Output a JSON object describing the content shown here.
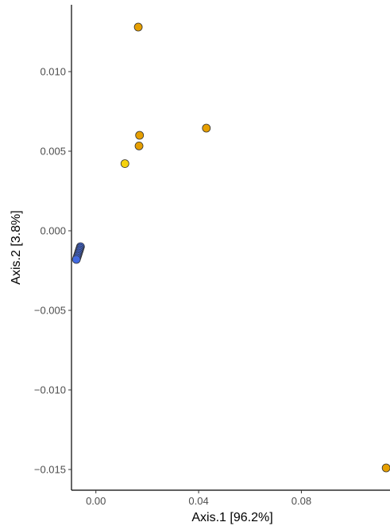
{
  "chart_data": {
    "type": "scatter",
    "xlabel": "Axis.1   [96.2%]",
    "ylabel": "Axis.2   [3.8%]",
    "xlim": [
      -0.0095,
      0.1145
    ],
    "ylim": [
      -0.0163,
      0.0142
    ],
    "x_ticks": [
      {
        "value": 0.0,
        "label": "0.00"
      },
      {
        "value": 0.04,
        "label": "0.04"
      },
      {
        "value": 0.08,
        "label": "0.08"
      }
    ],
    "y_ticks": [
      {
        "value": 0.01,
        "label": "0.010"
      },
      {
        "value": 0.005,
        "label": "0.005"
      },
      {
        "value": 0.0,
        "label": "0.000"
      },
      {
        "value": -0.005,
        "label": "−0.005"
      },
      {
        "value": -0.01,
        "label": "−0.010"
      },
      {
        "value": -0.015,
        "label": "−0.015"
      }
    ],
    "grid": false,
    "legend": "none",
    "series": [
      {
        "color": "#E69F00",
        "points": [
          {
            "x": 0.0165,
            "y": 0.0128
          },
          {
            "x": 0.043,
            "y": 0.00645
          },
          {
            "x": 0.017,
            "y": 0.006
          },
          {
            "x": 0.0168,
            "y": 0.00533
          },
          {
            "x": 0.113,
            "y": -0.0149
          }
        ]
      },
      {
        "color": "#F5D20E",
        "points": [
          {
            "x": 0.0113,
            "y": 0.00422
          }
        ]
      },
      {
        "color": "#4169E1",
        "points": [
          {
            "x": -0.006,
            "y": -0.001
          },
          {
            "x": -0.0062,
            "y": -0.0011
          },
          {
            "x": -0.0064,
            "y": -0.0012
          },
          {
            "x": -0.0066,
            "y": -0.0013
          },
          {
            "x": -0.0068,
            "y": -0.0014
          },
          {
            "x": -0.007,
            "y": -0.0015
          },
          {
            "x": -0.0072,
            "y": -0.0016
          },
          {
            "x": -0.0074,
            "y": -0.0017
          },
          {
            "x": -0.0076,
            "y": -0.0018
          }
        ]
      }
    ]
  }
}
